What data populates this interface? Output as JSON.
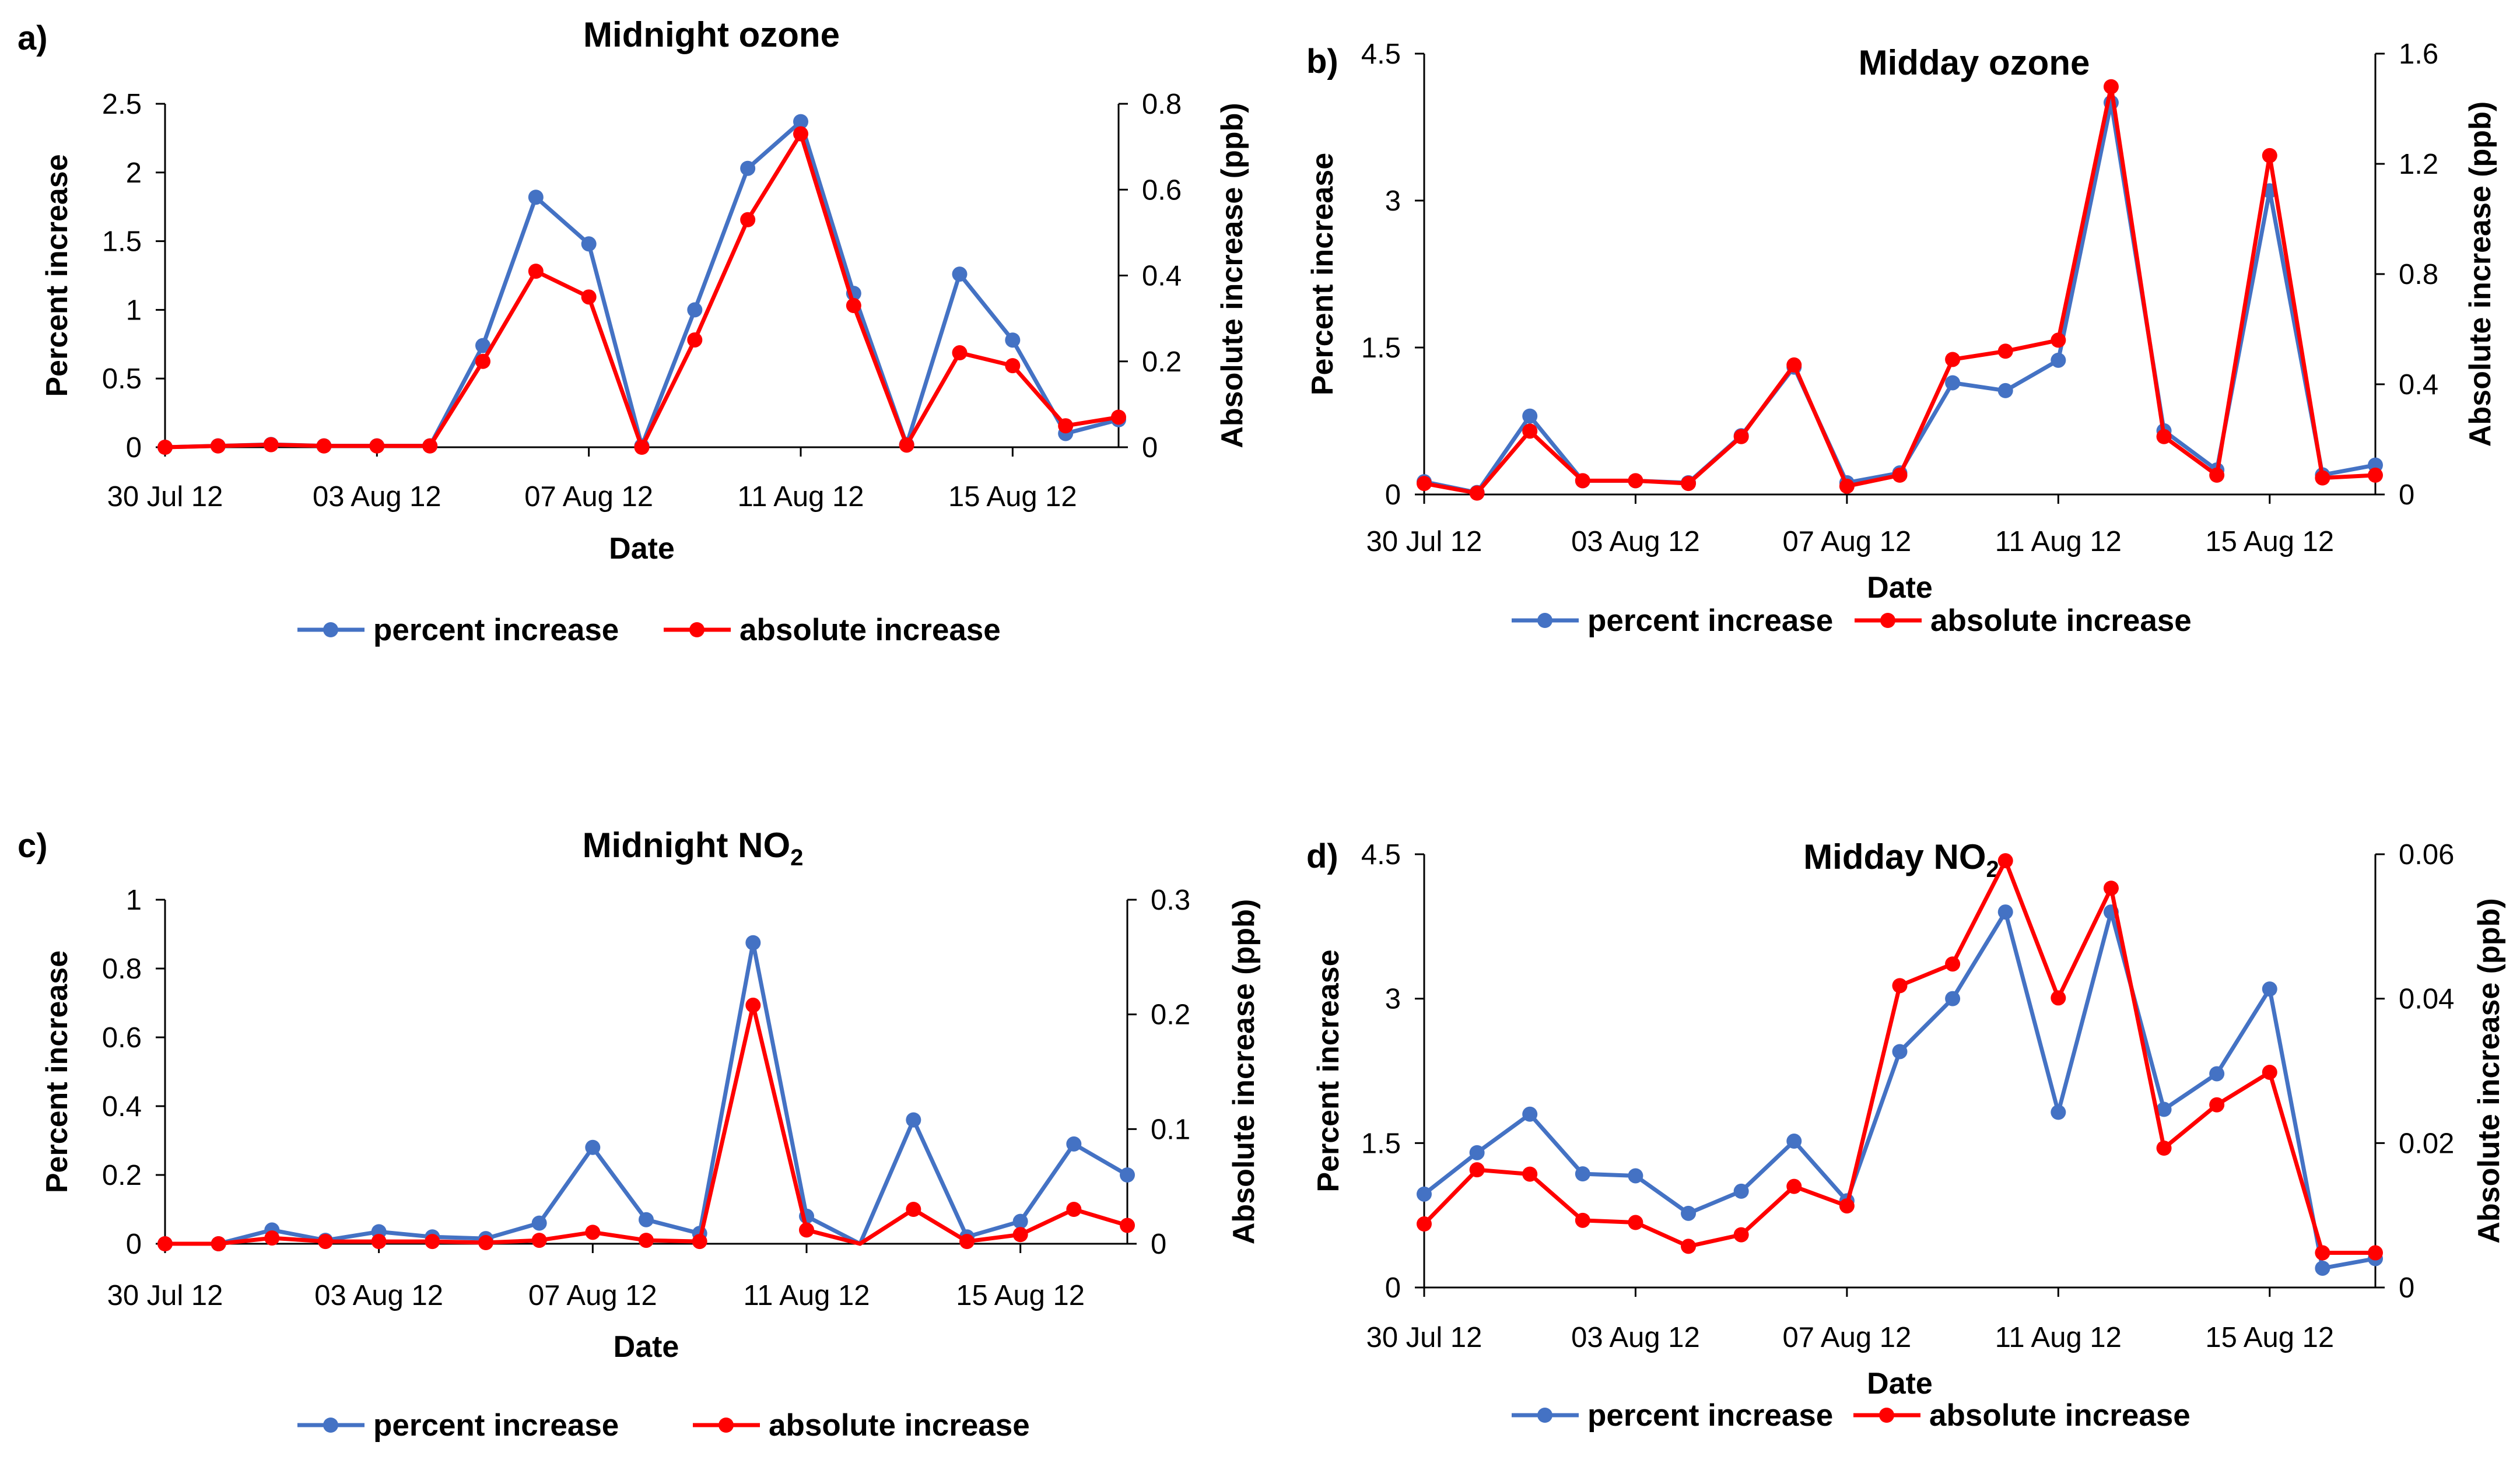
{
  "legend": {
    "percent": "percent increase",
    "absolute": "absolute increase"
  },
  "colors": {
    "percent": "#4472C4",
    "absolute": "#FF0000"
  },
  "chart_data": [
    {
      "panel": "a)",
      "title": "Midnight ozone",
      "subscript": "",
      "type": "line",
      "xlabel": "Date",
      "ylabel": "Percent increase",
      "y2label": "Absolute increase (ppb)",
      "ylim": [
        0,
        2.5
      ],
      "yticks": [
        "0",
        "0.5",
        "1",
        "1.5",
        "2",
        "2.5"
      ],
      "y2lim": [
        0,
        0.8
      ],
      "y2ticks": [
        "0",
        "0.2",
        "0.4",
        "0.6",
        "0.8"
      ],
      "xticks": [
        "30 Jul 12",
        "03 Aug 12",
        "07 Aug 12",
        "11 Aug 12",
        "15 Aug 12"
      ],
      "x": [
        "30 Jul",
        "31 Jul",
        "01 Aug",
        "02 Aug",
        "03 Aug",
        "04 Aug",
        "05 Aug",
        "06 Aug",
        "07 Aug",
        "08 Aug",
        "09 Aug",
        "10 Aug",
        "11 Aug",
        "12 Aug",
        "13 Aug",
        "14 Aug",
        "15 Aug",
        "16 Aug",
        "17 Aug"
      ],
      "series": [
        {
          "name": "percent increase",
          "axis": "left",
          "values": [
            0,
            0.01,
            0.02,
            0.01,
            0.01,
            0.01,
            0.74,
            1.82,
            1.48,
            0.01,
            1.0,
            2.03,
            2.37,
            1.12,
            0.02,
            1.26,
            0.78,
            0.1,
            0.2
          ]
        },
        {
          "name": "absolute increase",
          "axis": "right",
          "values": [
            0,
            0.003,
            0.006,
            0.003,
            0.003,
            0.003,
            0.2,
            0.41,
            0.35,
            0,
            0.25,
            0.53,
            0.73,
            0.33,
            0.005,
            0.22,
            0.19,
            0.05,
            0.07
          ]
        }
      ]
    },
    {
      "panel": "b)",
      "title": "Midday ozone",
      "subscript": "",
      "type": "line",
      "xlabel": "Date",
      "ylabel": "Percent increase",
      "y2label": "Absolute increase (ppb)",
      "ylim": [
        0,
        4.5
      ],
      "yticks": [
        "0",
        "1.5",
        "3",
        "4.5"
      ],
      "y2lim": [
        0,
        1.6
      ],
      "y2ticks": [
        "0",
        "0.4",
        "0.8",
        "1.2",
        "1.6"
      ],
      "xticks": [
        "30 Jul 12",
        "03 Aug 12",
        "07 Aug 12",
        "11 Aug 12",
        "15 Aug 12"
      ],
      "x": [
        "30 Jul",
        "31 Jul",
        "01 Aug",
        "02 Aug",
        "03 Aug",
        "04 Aug",
        "05 Aug",
        "06 Aug",
        "07 Aug",
        "08 Aug",
        "09 Aug",
        "10 Aug",
        "11 Aug",
        "12 Aug",
        "13 Aug",
        "14 Aug",
        "15 Aug",
        "16 Aug",
        "17 Aug"
      ],
      "series": [
        {
          "name": "percent increase",
          "axis": "left",
          "values": [
            0.13,
            0.02,
            0.8,
            0.14,
            0.14,
            0.12,
            0.6,
            1.3,
            0.12,
            0.22,
            1.14,
            1.06,
            1.37,
            4.0,
            0.65,
            0.25,
            3.1,
            0.2,
            0.3
          ]
        },
        {
          "name": "absolute increase",
          "axis": "right",
          "values": [
            0.04,
            0.005,
            0.23,
            0.05,
            0.05,
            0.04,
            0.21,
            0.47,
            0.03,
            0.07,
            0.49,
            0.52,
            0.56,
            1.48,
            0.21,
            0.07,
            1.23,
            0.06,
            0.07
          ]
        }
      ]
    },
    {
      "panel": "c)",
      "title": "Midnight NO",
      "subscript": "2",
      "type": "line",
      "xlabel": "Date",
      "ylabel": "Percent increase",
      "y2label": "Absolute increase (ppb)",
      "ylim": [
        0,
        1
      ],
      "yticks": [
        "0",
        "0.2",
        "0.4",
        "0.6",
        "0.8",
        "1"
      ],
      "y2lim": [
        0,
        0.3
      ],
      "y2ticks": [
        "0",
        "0.1",
        "0.2",
        "0.3"
      ],
      "xticks": [
        "30 Jul 12",
        "03 Aug 12",
        "07 Aug 12",
        "11 Aug 12",
        "15 Aug 12"
      ],
      "x": [
        "30 Jul",
        "31 Jul",
        "01 Aug",
        "02 Aug",
        "03 Aug",
        "04 Aug",
        "05 Aug",
        "06 Aug",
        "07 Aug",
        "08 Aug",
        "09 Aug",
        "10 Aug",
        "11 Aug",
        "12 Aug",
        "13 Aug",
        "14 Aug",
        "15 Aug",
        "16 Aug",
        "17 Aug"
      ],
      "series": [
        {
          "name": "percent increase",
          "axis": "left",
          "values": [
            0,
            0,
            0.04,
            0.01,
            0.035,
            0.02,
            0.015,
            0.06,
            0.28,
            0.07,
            0.03,
            0.875,
            0.08,
            null,
            0.36,
            0.02,
            0.065,
            0.29,
            0.2
          ]
        },
        {
          "name": "absolute increase",
          "axis": "right",
          "values": [
            0,
            0,
            0.005,
            0.002,
            0.002,
            0.002,
            0.001,
            0.003,
            0.01,
            0.003,
            0.002,
            0.208,
            0.012,
            null,
            0.03,
            0.002,
            0.008,
            0.03,
            0.016
          ]
        }
      ]
    },
    {
      "panel": "d)",
      "title": "Midday NO",
      "subscript": "2",
      "type": "line",
      "xlabel": "Date",
      "ylabel": "Percent increase",
      "y2label": "Absolute increase (ppb)",
      "ylim": [
        0,
        4.5
      ],
      "yticks": [
        "0",
        "1.5",
        "3",
        "4.5"
      ],
      "y2lim": [
        0,
        0.06
      ],
      "y2ticks": [
        "0",
        "0.02",
        "0.04",
        "0.06"
      ],
      "xticks": [
        "30 Jul 12",
        "03 Aug 12",
        "07 Aug 12",
        "11 Aug 12",
        "15 Aug 12"
      ],
      "x": [
        "30 Jul",
        "31 Jul",
        "01 Aug",
        "02 Aug",
        "03 Aug",
        "04 Aug",
        "05 Aug",
        "06 Aug",
        "07 Aug",
        "08 Aug",
        "09 Aug",
        "10 Aug",
        "11 Aug",
        "12 Aug",
        "13 Aug",
        "14 Aug",
        "15 Aug",
        "16 Aug",
        "17 Aug"
      ],
      "series": [
        {
          "name": "percent increase",
          "axis": "left",
          "values": [
            0.97,
            1.4,
            1.8,
            1.18,
            1.16,
            0.77,
            1.0,
            1.52,
            0.9,
            2.45,
            3.0,
            3.9,
            1.82,
            3.9,
            1.85,
            2.22,
            3.1,
            0.2,
            0.3
          ]
        },
        {
          "name": "absolute increase",
          "axis": "right",
          "values": [
            0.0088,
            0.0163,
            0.0157,
            0.0093,
            0.009,
            0.0057,
            0.0073,
            0.014,
            0.0113,
            0.0418,
            0.0448,
            0.0591,
            0.0401,
            0.0553,
            0.0193,
            0.0253,
            0.0298,
            0.0048,
            0.0048
          ]
        }
      ]
    }
  ]
}
